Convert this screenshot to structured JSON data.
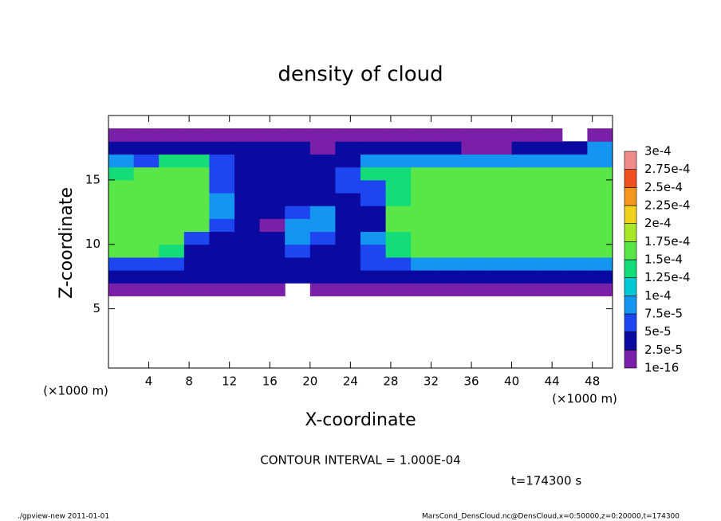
{
  "chart_data": {
    "type": "heatmap",
    "title": "density of cloud",
    "xlabel": "X-coordinate",
    "ylabel": "Z-coordinate",
    "xunit": "(×1000 m)",
    "yunit": "(×1000 m)",
    "annotation": "CONTOUR INTERVAL = 1.000E-04",
    "time": "t=174300 s",
    "footer_left": "./gpview-new  2011-01-01",
    "footer_right": "MarsCond_DensCloud.nc@DensCloud,x=0:50000,z=0:20000,t=174300",
    "xlim": [
      0,
      50
    ],
    "ylim": [
      0.4,
      20
    ],
    "xticks": [
      4,
      8,
      12,
      16,
      20,
      24,
      28,
      32,
      36,
      40,
      44,
      48
    ],
    "yticks": [
      5,
      10,
      15
    ],
    "x": [
      1.25,
      3.75,
      6.25,
      8.75,
      11.25,
      13.75,
      16.25,
      18.75,
      21.25,
      23.75,
      26.25,
      28.75,
      31.25,
      33.75,
      36.25,
      38.75,
      41.25,
      43.75,
      46.25,
      48.75
    ],
    "z": [
      6.5,
      7.5,
      8.5,
      9.5,
      10.5,
      11.5,
      12.5,
      13.5,
      14.5,
      15.5,
      16.5,
      17.5,
      18.5
    ],
    "values": [
      [
        1e-05,
        1e-05,
        1e-05,
        1e-05,
        1e-05,
        1e-05,
        1e-05,
        null,
        1e-05,
        1e-05,
        1e-05,
        1e-05,
        1e-05,
        1e-05,
        1e-05,
        1e-05,
        1e-05,
        1e-05,
        1e-05,
        1e-05
      ],
      [
        3.5e-05,
        3.5e-05,
        3.5e-05,
        3.5e-05,
        3.5e-05,
        3.5e-05,
        3.5e-05,
        3.5e-05,
        3.5e-05,
        3.5e-05,
        3.5e-05,
        3.5e-05,
        3.5e-05,
        3.5e-05,
        3.5e-05,
        3.5e-05,
        3.5e-05,
        3.5e-05,
        3.5e-05,
        3.5e-05
      ],
      [
        6e-05,
        6e-05,
        6e-05,
        3.5e-05,
        3.5e-05,
        3.5e-05,
        3.5e-05,
        3.5e-05,
        3.5e-05,
        3.5e-05,
        6e-05,
        6e-05,
        8.5e-05,
        8.5e-05,
        8.5e-05,
        8.5e-05,
        8.5e-05,
        8.5e-05,
        8.5e-05,
        8.5e-05
      ],
      [
        0.00016,
        0.00016,
        0.00014,
        3.5e-05,
        3.5e-05,
        3.5e-05,
        3.5e-05,
        6e-05,
        3.5e-05,
        3.5e-05,
        6e-05,
        0.00014,
        0.00016,
        0.00016,
        0.00016,
        0.00016,
        0.00016,
        0.00016,
        0.00016,
        0.00016
      ],
      [
        0.00016,
        0.00016,
        0.00016,
        6e-05,
        3.5e-05,
        3.5e-05,
        3.5e-05,
        8.5e-05,
        6e-05,
        3.5e-05,
        8.5e-05,
        0.00014,
        0.00016,
        0.00016,
        0.00016,
        0.00016,
        0.00016,
        0.00016,
        0.00016,
        0.00016
      ],
      [
        0.00016,
        0.00016,
        0.00016,
        0.00016,
        6e-05,
        3.5e-05,
        1e-05,
        8.5e-05,
        8.5e-05,
        3.5e-05,
        3.5e-05,
        0.00016,
        0.00016,
        0.00016,
        0.00016,
        0.00016,
        0.00016,
        0.00016,
        0.00016,
        0.00016
      ],
      [
        0.00016,
        0.00016,
        0.00016,
        0.00016,
        8.5e-05,
        3.5e-05,
        3.5e-05,
        6e-05,
        8.5e-05,
        3.5e-05,
        3.5e-05,
        0.00016,
        0.00016,
        0.00016,
        0.00016,
        0.00016,
        0.00016,
        0.00016,
        0.00016,
        0.00016
      ],
      [
        0.00016,
        0.00016,
        0.00016,
        0.00016,
        8.5e-05,
        3.5e-05,
        3.5e-05,
        3.5e-05,
        3.5e-05,
        3.5e-05,
        6e-05,
        0.00014,
        0.00016,
        0.00016,
        0.00016,
        0.00016,
        0.00016,
        0.00016,
        0.00016,
        0.00016
      ],
      [
        0.00016,
        0.00016,
        0.00016,
        0.00016,
        6e-05,
        3.5e-05,
        3.5e-05,
        3.5e-05,
        3.5e-05,
        6e-05,
        6e-05,
        0.00014,
        0.00016,
        0.00016,
        0.00016,
        0.00016,
        0.00016,
        0.00016,
        0.00016,
        0.00016
      ],
      [
        0.00014,
        0.00016,
        0.00016,
        0.00016,
        6e-05,
        3.5e-05,
        3.5e-05,
        3.5e-05,
        3.5e-05,
        6e-05,
        0.00014,
        0.00014,
        0.00016,
        0.00016,
        0.00016,
        0.00016,
        0.00016,
        0.00016,
        0.00016,
        0.00016
      ],
      [
        8.5e-05,
        6e-05,
        0.00014,
        0.00014,
        6e-05,
        3.5e-05,
        3.5e-05,
        3.5e-05,
        3.5e-05,
        3.5e-05,
        8.5e-05,
        8.5e-05,
        8.5e-05,
        8.5e-05,
        8.5e-05,
        8.5e-05,
        8.5e-05,
        8.5e-05,
        8.5e-05,
        8.5e-05
      ],
      [
        3.5e-05,
        3.5e-05,
        3.5e-05,
        3.5e-05,
        3.5e-05,
        3.5e-05,
        3.5e-05,
        3.5e-05,
        1e-05,
        3.5e-05,
        3.5e-05,
        3.5e-05,
        3.5e-05,
        3.5e-05,
        1e-05,
        1e-05,
        3.5e-05,
        3.5e-05,
        3.5e-05,
        8.5e-05
      ],
      [
        1e-05,
        1e-05,
        1e-05,
        1e-05,
        1e-05,
        1e-05,
        1e-05,
        1e-05,
        1e-05,
        1e-05,
        1e-05,
        1e-05,
        1e-05,
        1e-05,
        1e-05,
        1e-05,
        1e-05,
        1e-05,
        null,
        1e-05
      ]
    ],
    "colorbar": {
      "levels": [
        {
          "value": 1e-16,
          "label": "1e-16"
        },
        {
          "value": 2.5e-05,
          "label": "2.5e-5"
        },
        {
          "value": 5e-05,
          "label": "5e-5"
        },
        {
          "value": 7.5e-05,
          "label": "7.5e-5"
        },
        {
          "value": 0.0001,
          "label": "1e-4"
        },
        {
          "value": 0.000125,
          "label": "1.25e-4"
        },
        {
          "value": 0.00015,
          "label": "1.5e-4"
        },
        {
          "value": 0.000175,
          "label": "1.75e-4"
        },
        {
          "value": 0.0002,
          "label": "2e-4"
        },
        {
          "value": 0.000225,
          "label": "2.25e-4"
        },
        {
          "value": 0.00025,
          "label": "2.5e-4"
        },
        {
          "value": 0.000275,
          "label": "2.75e-4"
        },
        {
          "value": 0.0003,
          "label": "3e-4"
        }
      ],
      "colors": [
        "#7a1fa8",
        "#0a0aa0",
        "#1e46f0",
        "#1496f0",
        "#00c8d2",
        "#14dc78",
        "#5ae646",
        "#a8e628",
        "#f0d21e",
        "#f5961e",
        "#f0501e",
        "#f08c8c"
      ]
    }
  }
}
